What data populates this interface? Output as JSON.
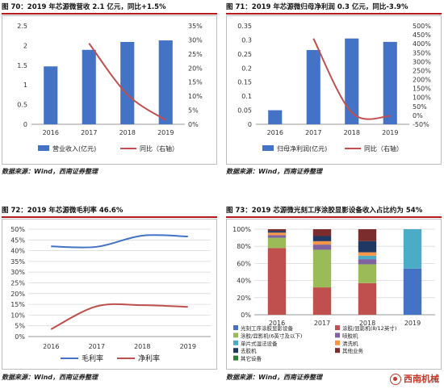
{
  "charts": [
    {
      "id": "revenue",
      "title": "图 70：2019 年芯源微营收 2.1 亿元，同比+1.5%",
      "source": "数据来源：Wind，西南证券整理",
      "chart_data": {
        "type": "bar",
        "categories": [
          "2016",
          "2017",
          "2018",
          "2019"
        ],
        "series": [
          {
            "name": "营业收入(亿元)",
            "type": "bar",
            "axis": "left",
            "color": "#4472c4",
            "values": [
              1.47,
              1.89,
              2.09,
              2.13
            ]
          },
          {
            "name": "同比（右轴）",
            "type": "line",
            "axis": "right",
            "color": "#c0504d",
            "values": [
              null,
              28.8,
              10.6,
              1.5
            ]
          }
        ],
        "ylim": [
          0,
          2.5
        ],
        "yticks": [
          0,
          0.5,
          1,
          1.5,
          2,
          2.5
        ],
        "ytick_labels": [
          "0",
          "0.5",
          "1",
          "1.5",
          "2",
          "2.5"
        ],
        "y2lim": [
          0,
          35
        ],
        "y2ticks": [
          0,
          5,
          10,
          15,
          20,
          25,
          30,
          35
        ],
        "y2tick_labels": [
          "0%",
          "5%",
          "10%",
          "15%",
          "20%",
          "25%",
          "30%",
          "35%"
        ],
        "legend": "bottom"
      }
    },
    {
      "id": "profit",
      "title": "图 71：2019 年芯源微归母净利润 0.3 亿元，同比-3.9%",
      "source": "数据来源：Wind，西南证券整理",
      "chart_data": {
        "type": "bar",
        "categories": [
          "2016",
          "2017",
          "2018",
          "2019"
        ],
        "series": [
          {
            "name": "归母净利润(亿元)",
            "type": "bar",
            "axis": "left",
            "color": "#4472c4",
            "values": [
              0.05,
              0.264,
              0.305,
              0.293
            ]
          },
          {
            "name": "同比（右轴）",
            "type": "line",
            "axis": "right",
            "color": "#c0504d",
            "values": [
              null,
              429,
              15.6,
              -3.9
            ]
          }
        ],
        "ylim": [
          0,
          0.35
        ],
        "yticks": [
          0,
          0.05,
          0.1,
          0.15,
          0.2,
          0.25,
          0.3,
          0.35
        ],
        "ytick_labels": [
          "0",
          "0.05",
          "0.1",
          "0.15",
          "0.2",
          "0.25",
          "0.3",
          "0.35"
        ],
        "y2lim": [
          -50,
          500
        ],
        "y2ticks": [
          -50,
          0,
          50,
          100,
          150,
          200,
          250,
          300,
          350,
          400,
          450,
          500
        ],
        "y2tick_labels": [
          "-50%",
          "0%",
          "50%",
          "100%",
          "150%",
          "200%",
          "250%",
          "300%",
          "350%",
          "400%",
          "450%",
          "500%"
        ],
        "legend": "bottom"
      }
    },
    {
      "id": "margin",
      "title": "图 72：2019 年芯源微毛利率 46.6%",
      "source": "数据来源：Wind，西南证券整理",
      "chart_data": {
        "type": "line",
        "categories": [
          "2016",
          "2017",
          "2018",
          "2019"
        ],
        "series": [
          {
            "name": "毛利率",
            "color": "#4472c4",
            "values": [
              42.0,
              41.8,
              47.0,
              46.6
            ]
          },
          {
            "name": "净利率",
            "color": "#c0504d",
            "values": [
              3.4,
              14.1,
              14.6,
              13.8
            ]
          }
        ],
        "ylim": [
          0,
          50
        ],
        "yticks": [
          0,
          5,
          10,
          15,
          20,
          25,
          30,
          35,
          40,
          45,
          50
        ],
        "ytick_labels": [
          "0%",
          "5%",
          "10%",
          "15%",
          "20%",
          "25%",
          "30%",
          "35%",
          "40%",
          "45%",
          "50%"
        ],
        "legend": "bottom"
      }
    },
    {
      "id": "stack",
      "title": "图 73：2019 芯源微光刻工序涂胶显影设备收入占比约为 54%",
      "source": "数据来源：Wind，西南证券整理",
      "chart_data": {
        "type": "bar",
        "stacked": true,
        "categories": [
          "2016",
          "2017",
          "2018",
          "2019"
        ],
        "series": [
          {
            "name": "光刻工序涂胶显影设备",
            "color": "#4472c4",
            "values": [
              0,
              0,
              0,
              54
            ]
          },
          {
            "name": "涂胶/显影机(8/12英寸)",
            "color": "#c0504d",
            "values": [
              78,
              32,
              37,
              0
            ]
          },
          {
            "name": "涂胶/显影机(6英寸及以下)",
            "color": "#9bbb59",
            "values": [
              12,
              44,
              22,
              0
            ]
          },
          {
            "name": "喷胶机",
            "color": "#8064a2",
            "values": [
              3,
              6,
              6,
              0
            ]
          },
          {
            "name": "单片式湿法设备",
            "color": "#4bacc6",
            "values": [
              0,
              0,
              4,
              46
            ]
          },
          {
            "name": "清洗机",
            "color": "#f79646",
            "values": [
              3,
              4,
              4,
              0
            ]
          },
          {
            "name": "去胶机",
            "color": "#1f3864",
            "values": [
              2,
              6,
              13,
              0
            ]
          },
          {
            "name": "其他业务",
            "color": "#7b2c2c",
            "values": [
              2,
              8,
              14,
              0
            ]
          },
          {
            "name": "其它设备",
            "color": "#2e7d32",
            "values": [
              0,
              0,
              0,
              0
            ]
          }
        ],
        "ylim": [
          0,
          100
        ],
        "yticks": [
          0,
          20,
          40,
          60,
          80,
          100
        ],
        "ytick_labels": [
          "0%",
          "20%",
          "40%",
          "60%",
          "80%",
          "100%"
        ],
        "legend": "bottom"
      }
    }
  ],
  "watermark": "西南机械"
}
